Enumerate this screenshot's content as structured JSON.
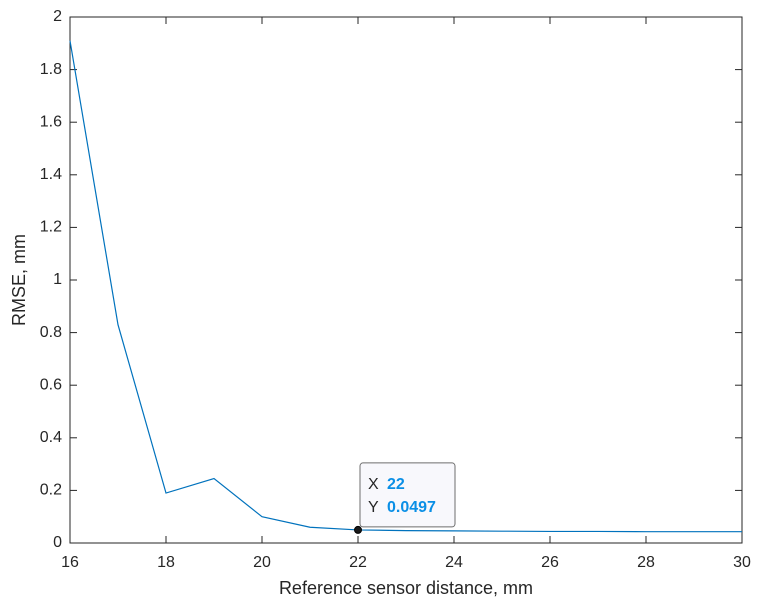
{
  "chart_data": {
    "type": "line",
    "x_label": "Reference sensor distance, mm",
    "y_label": "RMSE, mm",
    "x": [
      16,
      17,
      18,
      19,
      20,
      21,
      22,
      23,
      24,
      25,
      26,
      27,
      28,
      29,
      30
    ],
    "series": [
      {
        "color": "#0072bd",
        "values": [
          1.91,
          0.83,
          0.19,
          0.245,
          0.1,
          0.06,
          0.0497,
          0.047,
          0.046,
          0.045,
          0.044,
          0.044,
          0.043,
          0.043,
          0.043
        ]
      }
    ],
    "xlim": [
      16,
      30
    ],
    "xticks": [
      16,
      18,
      20,
      22,
      24,
      26,
      28,
      30
    ],
    "ylim": [
      0,
      2
    ],
    "yticks": [
      0,
      0.2,
      0.4,
      0.6,
      0.8,
      1,
      1.2,
      1.4,
      1.6,
      1.8,
      2
    ],
    "grid": false,
    "datatip": {
      "x_label": "X",
      "x": 22,
      "y_label": "Y",
      "y": 0.0497
    }
  }
}
